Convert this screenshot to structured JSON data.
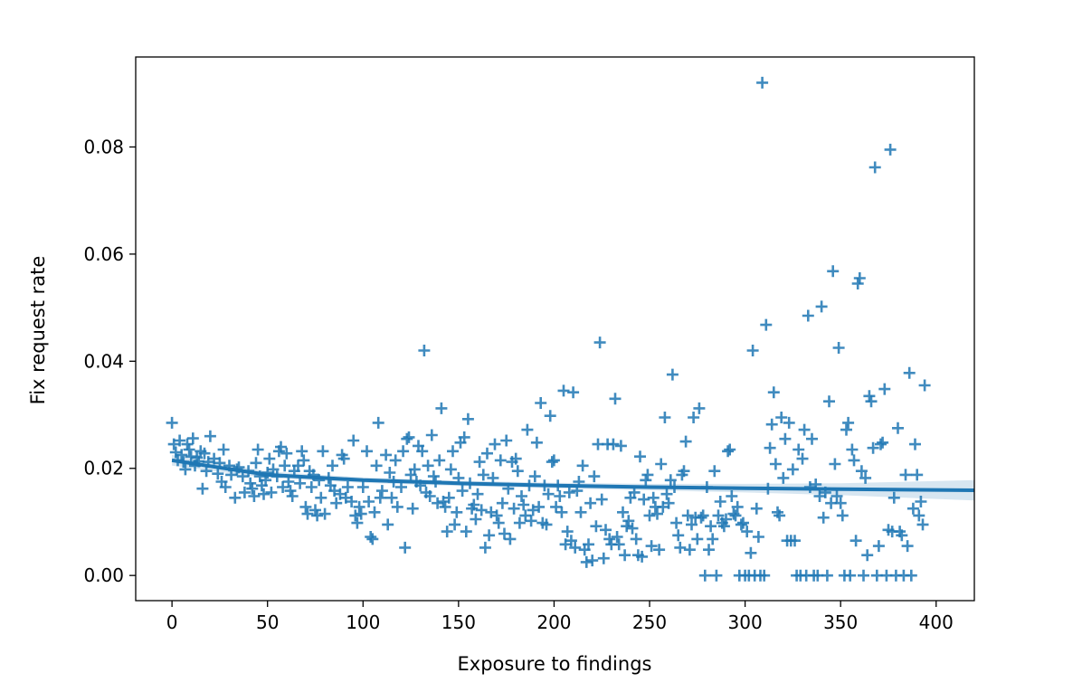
{
  "colors": {
    "marker": "#1f77b4",
    "band": "#1f77b4",
    "axis": "#000000",
    "background": "#ffffff"
  },
  "chart_data": {
    "type": "scatter",
    "title": "",
    "xlabel": "Exposure to findings",
    "ylabel": "Fix request rate",
    "xlim": [
      -19,
      420
    ],
    "ylim": [
      -0.0047,
      0.0968
    ],
    "xticks": [
      0,
      50,
      100,
      150,
      200,
      250,
      300,
      350,
      400
    ],
    "yticks": [
      0.0,
      0.02,
      0.04,
      0.06,
      0.08
    ],
    "ytick_labels": [
      "0.00",
      "0.02",
      "0.04",
      "0.06",
      "0.08"
    ],
    "grid": false,
    "legend": "none",
    "marker": "plus",
    "regression": {
      "x": [
        0,
        50,
        100,
        150,
        200,
        250,
        300,
        350,
        420
      ],
      "y": [
        0.0215,
        0.0188,
        0.0178,
        0.0172,
        0.0168,
        0.0165,
        0.0163,
        0.0161,
        0.0159
      ],
      "ci_upper": [
        0.0225,
        0.0194,
        0.0183,
        0.0177,
        0.0173,
        0.0171,
        0.0171,
        0.0172,
        0.0178
      ],
      "ci_lower": [
        0.0205,
        0.0182,
        0.0173,
        0.0167,
        0.0163,
        0.0159,
        0.0155,
        0.015,
        0.014
      ]
    },
    "points": [
      [
        0,
        0.0285
      ],
      [
        1,
        0.0245
      ],
      [
        2,
        0.023
      ],
      [
        3,
        0.0215
      ],
      [
        4,
        0.0252
      ],
      [
        5,
        0.0225
      ],
      [
        6,
        0.0212
      ],
      [
        7,
        0.0198
      ],
      [
        8,
        0.0245
      ],
      [
        9,
        0.0235
      ],
      [
        10,
        0.0222
      ],
      [
        11,
        0.0256
      ],
      [
        12,
        0.0205
      ],
      [
        13,
        0.022
      ],
      [
        14,
        0.0213
      ],
      [
        15,
        0.0232
      ],
      [
        16,
        0.0162
      ],
      [
        17,
        0.0228
      ],
      [
        18,
        0.0195
      ],
      [
        19,
        0.0212
      ],
      [
        20,
        0.026
      ],
      [
        22,
        0.0218
      ],
      [
        24,
        0.019
      ],
      [
        25,
        0.021
      ],
      [
        26,
        0.0175
      ],
      [
        27,
        0.0235
      ],
      [
        28,
        0.0165
      ],
      [
        30,
        0.0205
      ],
      [
        31,
        0.0188
      ],
      [
        33,
        0.0145
      ],
      [
        34,
        0.0198
      ],
      [
        35,
        0.0202
      ],
      [
        37,
        0.0185
      ],
      [
        38,
        0.0155
      ],
      [
        40,
        0.0195
      ],
      [
        41,
        0.0172
      ],
      [
        42,
        0.0162
      ],
      [
        43,
        0.0148
      ],
      [
        44,
        0.021
      ],
      [
        45,
        0.0235
      ],
      [
        46,
        0.0185
      ],
      [
        47,
        0.0168
      ],
      [
        48,
        0.0152
      ],
      [
        49,
        0.0178
      ],
      [
        50,
        0.0192
      ],
      [
        51,
        0.0218
      ],
      [
        52,
        0.0155
      ],
      [
        53,
        0.0198
      ],
      [
        55,
        0.0185
      ],
      [
        56,
        0.0232
      ],
      [
        57,
        0.024
      ],
      [
        58,
        0.0165
      ],
      [
        59,
        0.0205
      ],
      [
        60,
        0.0228
      ],
      [
        61,
        0.0175
      ],
      [
        62,
        0.0158
      ],
      [
        63,
        0.0148
      ],
      [
        64,
        0.0195
      ],
      [
        66,
        0.0205
      ],
      [
        67,
        0.0172
      ],
      [
        68,
        0.0232
      ],
      [
        69,
        0.0215
      ],
      [
        70,
        0.0128
      ],
      [
        71,
        0.0115
      ],
      [
        72,
        0.0195
      ],
      [
        73,
        0.0165
      ],
      [
        74,
        0.0188
      ],
      [
        75,
        0.0122
      ],
      [
        76,
        0.0112
      ],
      [
        77,
        0.0178
      ],
      [
        78,
        0.0145
      ],
      [
        79,
        0.0232
      ],
      [
        80,
        0.0115
      ],
      [
        82,
        0.0182
      ],
      [
        83,
        0.0168
      ],
      [
        84,
        0.0205
      ],
      [
        85,
        0.0158
      ],
      [
        86,
        0.0135
      ],
      [
        88,
        0.0152
      ],
      [
        89,
        0.0225
      ],
      [
        90,
        0.0218
      ],
      [
        91,
        0.0145
      ],
      [
        92,
        0.0165
      ],
      [
        94,
        0.0138
      ],
      [
        95,
        0.0252
      ],
      [
        96,
        0.0112
      ],
      [
        97,
        0.0098
      ],
      [
        98,
        0.0128
      ],
      [
        99,
        0.0115
      ],
      [
        100,
        0.0165
      ],
      [
        102,
        0.0232
      ],
      [
        103,
        0.0138
      ],
      [
        104,
        0.0072
      ],
      [
        105,
        0.0068
      ],
      [
        106,
        0.0118
      ],
      [
        107,
        0.0205
      ],
      [
        108,
        0.0285
      ],
      [
        109,
        0.0145
      ],
      [
        110,
        0.0158
      ],
      [
        112,
        0.0225
      ],
      [
        113,
        0.0095
      ],
      [
        114,
        0.0192
      ],
      [
        115,
        0.0145
      ],
      [
        116,
        0.0175
      ],
      [
        117,
        0.0215
      ],
      [
        118,
        0.0128
      ],
      [
        120,
        0.0165
      ],
      [
        121,
        0.0232
      ],
      [
        122,
        0.0052
      ],
      [
        123,
        0.0255
      ],
      [
        124,
        0.0258
      ],
      [
        125,
        0.0188
      ],
      [
        126,
        0.0125
      ],
      [
        127,
        0.0198
      ],
      [
        128,
        0.0175
      ],
      [
        129,
        0.0242
      ],
      [
        130,
        0.0168
      ],
      [
        131,
        0.0232
      ],
      [
        132,
        0.042
      ],
      [
        133,
        0.0155
      ],
      [
        134,
        0.0205
      ],
      [
        135,
        0.0148
      ],
      [
        136,
        0.0262
      ],
      [
        137,
        0.0185
      ],
      [
        138,
        0.0175
      ],
      [
        139,
        0.0135
      ],
      [
        140,
        0.0215
      ],
      [
        141,
        0.0312
      ],
      [
        142,
        0.0138
      ],
      [
        143,
        0.0128
      ],
      [
        144,
        0.0082
      ],
      [
        145,
        0.0145
      ],
      [
        146,
        0.0198
      ],
      [
        147,
        0.0232
      ],
      [
        148,
        0.0095
      ],
      [
        149,
        0.0118
      ],
      [
        150,
        0.0182
      ],
      [
        151,
        0.0248
      ],
      [
        152,
        0.0158
      ],
      [
        153,
        0.0258
      ],
      [
        154,
        0.0082
      ],
      [
        155,
        0.0292
      ],
      [
        156,
        0.0172
      ],
      [
        157,
        0.0125
      ],
      [
        158,
        0.0132
      ],
      [
        159,
        0.0105
      ],
      [
        160,
        0.0152
      ],
      [
        161,
        0.0212
      ],
      [
        162,
        0.0122
      ],
      [
        163,
        0.0188
      ],
      [
        164,
        0.0052
      ],
      [
        165,
        0.0228
      ],
      [
        166,
        0.0075
      ],
      [
        167,
        0.0118
      ],
      [
        168,
        0.0182
      ],
      [
        169,
        0.0245
      ],
      [
        170,
        0.0112
      ],
      [
        171,
        0.0098
      ],
      [
        172,
        0.0215
      ],
      [
        173,
        0.0135
      ],
      [
        174,
        0.0078
      ],
      [
        175,
        0.0252
      ],
      [
        176,
        0.0162
      ],
      [
        177,
        0.0068
      ],
      [
        178,
        0.0212
      ],
      [
        179,
        0.0125
      ],
      [
        180,
        0.0218
      ],
      [
        181,
        0.0195
      ],
      [
        182,
        0.0098
      ],
      [
        183,
        0.0148
      ],
      [
        184,
        0.0132
      ],
      [
        185,
        0.0112
      ],
      [
        186,
        0.0272
      ],
      [
        187,
        0.0168
      ],
      [
        188,
        0.0102
      ],
      [
        189,
        0.0122
      ],
      [
        190,
        0.0185
      ],
      [
        191,
        0.0248
      ],
      [
        192,
        0.0128
      ],
      [
        193,
        0.0322
      ],
      [
        194,
        0.0098
      ],
      [
        195,
        0.0168
      ],
      [
        196,
        0.0095
      ],
      [
        197,
        0.0152
      ],
      [
        198,
        0.0298
      ],
      [
        199,
        0.0212
      ],
      [
        200,
        0.0215
      ],
      [
        201,
        0.0128
      ],
      [
        202,
        0.0168
      ],
      [
        203,
        0.0148
      ],
      [
        204,
        0.0118
      ],
      [
        205,
        0.0345
      ],
      [
        206,
        0.0058
      ],
      [
        207,
        0.0082
      ],
      [
        208,
        0.0155
      ],
      [
        209,
        0.0065
      ],
      [
        210,
        0.0342
      ],
      [
        211,
        0.0052
      ],
      [
        212,
        0.0158
      ],
      [
        213,
        0.0175
      ],
      [
        214,
        0.0118
      ],
      [
        215,
        0.0205
      ],
      [
        216,
        0.0048
      ],
      [
        217,
        0.0025
      ],
      [
        218,
        0.0058
      ],
      [
        219,
        0.0135
      ],
      [
        220,
        0.0028
      ],
      [
        221,
        0.0185
      ],
      [
        222,
        0.0092
      ],
      [
        223,
        0.0245
      ],
      [
        224,
        0.0435
      ],
      [
        225,
        0.0142
      ],
      [
        226,
        0.0032
      ],
      [
        227,
        0.0085
      ],
      [
        228,
        0.0245
      ],
      [
        229,
        0.0068
      ],
      [
        230,
        0.0058
      ],
      [
        231,
        0.0245
      ],
      [
        232,
        0.033
      ],
      [
        233,
        0.0072
      ],
      [
        234,
        0.0058
      ],
      [
        235,
        0.0242
      ],
      [
        236,
        0.0118
      ],
      [
        237,
        0.0038
      ],
      [
        238,
        0.0092
      ],
      [
        239,
        0.0102
      ],
      [
        240,
        0.0145
      ],
      [
        241,
        0.0088
      ],
      [
        242,
        0.0155
      ],
      [
        243,
        0.0068
      ],
      [
        244,
        0.0038
      ],
      [
        245,
        0.0222
      ],
      [
        246,
        0.0035
      ],
      [
        247,
        0.0142
      ],
      [
        248,
        0.0178
      ],
      [
        249,
        0.0188
      ],
      [
        250,
        0.0112
      ],
      [
        251,
        0.0055
      ],
      [
        252,
        0.0145
      ],
      [
        253,
        0.0128
      ],
      [
        254,
        0.0115
      ],
      [
        255,
        0.0048
      ],
      [
        256,
        0.0208
      ],
      [
        257,
        0.0128
      ],
      [
        258,
        0.0295
      ],
      [
        259,
        0.0152
      ],
      [
        260,
        0.0135
      ],
      [
        261,
        0.0178
      ],
      [
        262,
        0.0375
      ],
      [
        263,
        0.0165
      ],
      [
        264,
        0.0098
      ],
      [
        265,
        0.0075
      ],
      [
        266,
        0.0052
      ],
      [
        267,
        0.0188
      ],
      [
        268,
        0.0195
      ],
      [
        269,
        0.025
      ],
      [
        270,
        0.0112
      ],
      [
        271,
        0.0048
      ],
      [
        272,
        0.0095
      ],
      [
        273,
        0.0295
      ],
      [
        274,
        0.0108
      ],
      [
        275,
        0.0068
      ],
      [
        276,
        0.0312
      ],
      [
        277,
        0.0108
      ],
      [
        278,
        0.0112
      ],
      [
        279,
        0.0
      ],
      [
        280,
        0.0165
      ],
      [
        281,
        0.0048
      ],
      [
        282,
        0.0092
      ],
      [
        283,
        0.0068
      ],
      [
        284,
        0.0195
      ],
      [
        285,
        0.0
      ],
      [
        286,
        0.0112
      ],
      [
        287,
        0.0138
      ],
      [
        288,
        0.0098
      ],
      [
        289,
        0.0092
      ],
      [
        290,
        0.0105
      ],
      [
        291,
        0.0232
      ],
      [
        292,
        0.0235
      ],
      [
        293,
        0.0148
      ],
      [
        294,
        0.0115
      ],
      [
        295,
        0.0112
      ],
      [
        296,
        0.0128
      ],
      [
        297,
        0.0
      ],
      [
        298,
        0.0095
      ],
      [
        299,
        0.0098
      ],
      [
        300,
        0.0
      ],
      [
        301,
        0.0082
      ],
      [
        302,
        0.0
      ],
      [
        303,
        0.0042
      ],
      [
        304,
        0.042
      ],
      [
        305,
        0.0
      ],
      [
        306,
        0.0125
      ],
      [
        307,
        0.0072
      ],
      [
        308,
        0.0
      ],
      [
        309,
        0.092
      ],
      [
        310,
        0.0
      ],
      [
        311,
        0.0468
      ],
      [
        312,
        0.0162
      ],
      [
        313,
        0.0238
      ],
      [
        314,
        0.0282
      ],
      [
        315,
        0.0342
      ],
      [
        316,
        0.0208
      ],
      [
        317,
        0.0118
      ],
      [
        318,
        0.0112
      ],
      [
        319,
        0.0295
      ],
      [
        320,
        0.0182
      ],
      [
        321,
        0.0255
      ],
      [
        322,
        0.0065
      ],
      [
        323,
        0.0285
      ],
      [
        324,
        0.0065
      ],
      [
        325,
        0.0198
      ],
      [
        326,
        0.0065
      ],
      [
        327,
        0.0
      ],
      [
        328,
        0.0235
      ],
      [
        329,
        0.0
      ],
      [
        330,
        0.0218
      ],
      [
        331,
        0.0272
      ],
      [
        332,
        0.0
      ],
      [
        333,
        0.0485
      ],
      [
        334,
        0.0165
      ],
      [
        335,
        0.0255
      ],
      [
        336,
        0.0
      ],
      [
        337,
        0.017
      ],
      [
        338,
        0.0
      ],
      [
        339,
        0.0148
      ],
      [
        340,
        0.0502
      ],
      [
        341,
        0.0108
      ],
      [
        342,
        0.0155
      ],
      [
        343,
        0.0
      ],
      [
        344,
        0.0325
      ],
      [
        345,
        0.0135
      ],
      [
        346,
        0.0568
      ],
      [
        347,
        0.0208
      ],
      [
        348,
        0.0148
      ],
      [
        349,
        0.0425
      ],
      [
        350,
        0.0135
      ],
      [
        351,
        0.0112
      ],
      [
        352,
        0.0
      ],
      [
        353,
        0.0272
      ],
      [
        354,
        0.0285
      ],
      [
        355,
        0.0
      ],
      [
        356,
        0.0235
      ],
      [
        357,
        0.0215
      ],
      [
        358,
        0.0065
      ],
      [
        359,
        0.0545
      ],
      [
        360,
        0.0555
      ],
      [
        361,
        0.0195
      ],
      [
        362,
        0.0
      ],
      [
        363,
        0.0182
      ],
      [
        364,
        0.0038
      ],
      [
        365,
        0.0335
      ],
      [
        366,
        0.0325
      ],
      [
        367,
        0.0238
      ],
      [
        368,
        0.0762
      ],
      [
        369,
        0.0
      ],
      [
        370,
        0.0055
      ],
      [
        371,
        0.0245
      ],
      [
        372,
        0.0248
      ],
      [
        373,
        0.0348
      ],
      [
        374,
        0.0
      ],
      [
        375,
        0.0085
      ],
      [
        376,
        0.0795
      ],
      [
        377,
        0.0082
      ],
      [
        378,
        0.0145
      ],
      [
        379,
        0.0
      ],
      [
        380,
        0.0275
      ],
      [
        381,
        0.0082
      ],
      [
        382,
        0.0075
      ],
      [
        383,
        0.0
      ],
      [
        384,
        0.0188
      ],
      [
        385,
        0.0055
      ],
      [
        386,
        0.0378
      ],
      [
        387,
        0.0
      ],
      [
        388,
        0.0125
      ],
      [
        389,
        0.0245
      ],
      [
        390,
        0.0188
      ],
      [
        391,
        0.0112
      ],
      [
        392,
        0.0138
      ],
      [
        393,
        0.0095
      ],
      [
        394,
        0.0355
      ]
    ]
  }
}
